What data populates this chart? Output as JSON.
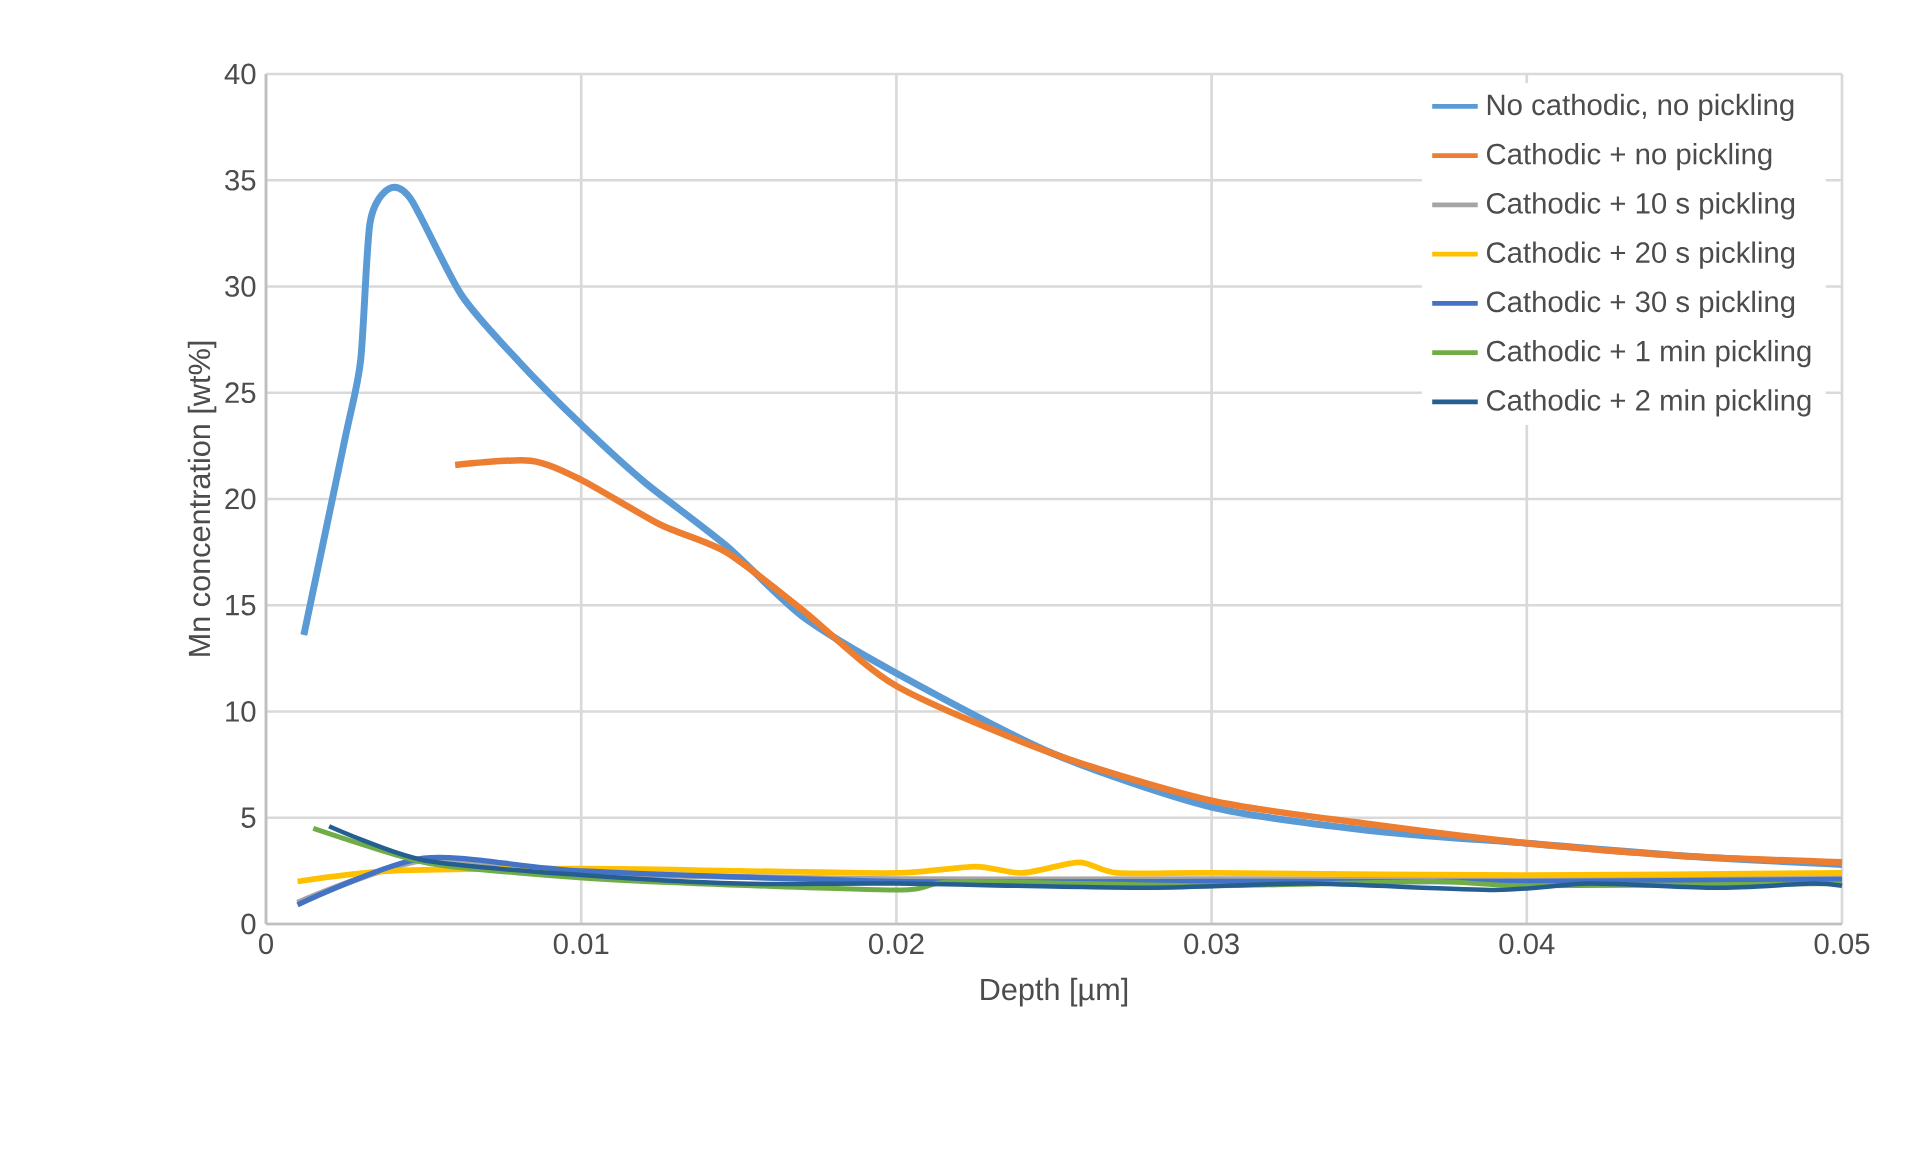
{
  "chart_data": {
    "type": "line",
    "xlabel": "Depth [µm]",
    "ylabel": "Mn concentration [wt%]",
    "xlim": [
      0,
      0.05
    ],
    "ylim": [
      0,
      40
    ],
    "xticks": [
      0,
      0.01,
      0.02,
      0.03,
      0.04,
      0.05
    ],
    "yticks": [
      0,
      5,
      10,
      15,
      20,
      25,
      30,
      35,
      40
    ],
    "grid": true,
    "legend": "top right",
    "marker": "none",
    "line_style": "solid",
    "series": [
      {
        "name": "No cathodic, no pickling",
        "color": "#5b9bd5",
        "x": [
          0.0012,
          0.0025,
          0.003,
          0.0033,
          0.0039,
          0.0046,
          0.0062,
          0.008,
          0.01,
          0.012,
          0.0146,
          0.017,
          0.02,
          0.025,
          0.03,
          0.035,
          0.04,
          0.045,
          0.05
        ],
        "values": [
          13.6,
          22.8,
          26.5,
          33,
          34.6,
          34.1,
          29.6,
          26.5,
          23.5,
          20.8,
          17.8,
          14.5,
          11.8,
          8,
          5.5,
          4.4,
          3.8,
          3.2,
          2.8
        ]
      },
      {
        "name": "Cathodic + no pickling",
        "color": "#ed7d31",
        "x": [
          0.006,
          0.0084,
          0.01,
          0.0125,
          0.0146,
          0.017,
          0.02,
          0.025,
          0.03,
          0.035,
          0.04,
          0.045,
          0.05
        ],
        "values": [
          21.6,
          21.8,
          20.9,
          18.8,
          17.5,
          14.8,
          11.2,
          8,
          5.8,
          4.7,
          3.8,
          3.2,
          2.9
        ]
      },
      {
        "name": "Cathodic + 10 s pickling",
        "color": "#a5a5a5",
        "x": [
          0.001,
          0.005,
          0.01,
          0.02,
          0.03,
          0.04,
          0.05
        ],
        "values": [
          1.0,
          3.0,
          2.4,
          2.1,
          2.1,
          2.1,
          2.2
        ]
      },
      {
        "name": "Cathodic + 20 s pickling",
        "color": "#ffc000",
        "x": [
          0.001,
          0.004,
          0.01,
          0.015,
          0.02,
          0.0225,
          0.024,
          0.0258,
          0.027,
          0.03,
          0.04,
          0.05
        ],
        "values": [
          2.0,
          2.5,
          2.6,
          2.5,
          2.4,
          2.7,
          2.4,
          2.9,
          2.4,
          2.4,
          2.3,
          2.4
        ]
      },
      {
        "name": "Cathodic + 30 s pickling",
        "color": "#4472c4",
        "x": [
          0.001,
          0.005,
          0.01,
          0.02,
          0.03,
          0.04,
          0.05
        ],
        "values": [
          0.9,
          3.1,
          2.5,
          2.0,
          2.0,
          2.0,
          2.1
        ]
      },
      {
        "name": "Cathodic + 1 min pickling",
        "color": "#70ad47",
        "x": [
          0.0015,
          0.005,
          0.008,
          0.012,
          0.02,
          0.022,
          0.03,
          0.037,
          0.04,
          0.05
        ],
        "values": [
          4.5,
          2.9,
          2.4,
          2.0,
          1.6,
          2.0,
          1.8,
          2.0,
          1.8,
          1.9
        ]
      },
      {
        "name": "Cathodic + 2 min pickling",
        "color": "#255e91",
        "x": [
          0.002,
          0.005,
          0.01,
          0.015,
          0.02,
          0.028,
          0.033,
          0.039,
          0.042,
          0.046,
          0.049,
          0.05
        ],
        "values": [
          4.6,
          3.0,
          2.3,
          1.9,
          1.9,
          1.7,
          1.9,
          1.6,
          1.9,
          1.7,
          1.9,
          1.8
        ]
      }
    ]
  }
}
